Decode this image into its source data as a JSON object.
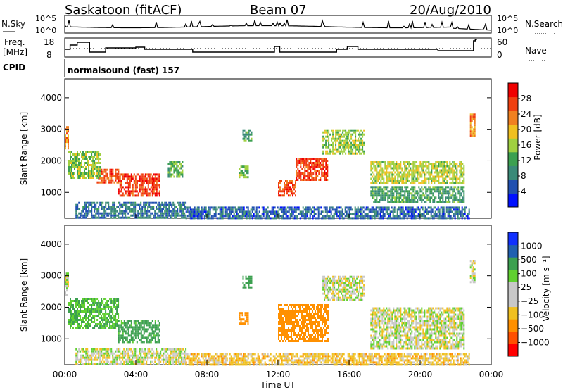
{
  "header": {
    "station": "Saskatoon (fitACF)",
    "beam": "Beam 07",
    "date": "20/Aug/2010"
  },
  "strip_labels": {
    "nsky": "N.Sky",
    "freq_top": "Freq.",
    "freq_unit": "[MHz]",
    "cpid": "CPID",
    "nsearch": "N.Search",
    "nave": "Nave",
    "cpid_text": "normalsound (fast) 157",
    "nsky_ticks": [
      "10^5",
      "10^0"
    ],
    "nsearch_ticks": [
      "10^5",
      "10^0"
    ],
    "freq_ticks": [
      "18",
      "8"
    ],
    "nave_ticks": [
      "60",
      "0"
    ]
  },
  "colors": {
    "power_scale": [
      "#0010ff",
      "#2050b0",
      "#3a8a78",
      "#3ca050",
      "#a0d040",
      "#f0c020",
      "#f08020",
      "#f04010",
      "#f00000"
    ],
    "velocity_scale": [
      "#ff0000",
      "#ff5000",
      "#ff9000",
      "#f0c020",
      "#c8c8c8",
      "#c8c8c8",
      "#60d030",
      "#3ca050",
      "#2060b0",
      "#1030ff"
    ]
  },
  "chart_data": [
    {
      "type": "heatmap",
      "name": "power",
      "ylabel": "Slant Range [km]",
      "ylim": [
        180,
        4600
      ],
      "y_ticks": [
        "1000",
        "2000",
        "3000",
        "4000"
      ],
      "x_ticks": [
        "00:00",
        "04:00",
        "08:00",
        "12:00",
        "16:00",
        "20:00",
        "00:00"
      ],
      "colorbar": {
        "label": "Power [dB]",
        "ticks": [
          "4",
          "8",
          "12",
          "16",
          "20",
          "24",
          "28"
        ]
      },
      "regions": [
        {
          "t0": 1.8,
          "t1": 3.0,
          "r0": 1300,
          "r1": 1750,
          "v": 25
        },
        {
          "t0": 3.0,
          "t1": 5.3,
          "r0": 900,
          "r1": 1600,
          "v": 27
        },
        {
          "t0": 0.2,
          "t1": 2.0,
          "r0": 1450,
          "r1": 2300,
          "v": 14
        },
        {
          "t0": 0.0,
          "t1": 0.2,
          "r0": 2400,
          "r1": 3100,
          "v": 22
        },
        {
          "t0": 0.6,
          "t1": 6.8,
          "r0": 200,
          "r1": 700,
          "v": 6
        },
        {
          "t0": 6.8,
          "t1": 22.8,
          "r0": 200,
          "r1": 550,
          "v": 5
        },
        {
          "t0": 12.0,
          "t1": 13.0,
          "r0": 900,
          "r1": 1400,
          "v": 26
        },
        {
          "t0": 13.0,
          "t1": 14.8,
          "r0": 1400,
          "r1": 2100,
          "v": 27
        },
        {
          "t0": 14.5,
          "t1": 16.8,
          "r0": 2200,
          "r1": 3000,
          "v": 15
        },
        {
          "t0": 17.2,
          "t1": 22.5,
          "r0": 1300,
          "r1": 2000,
          "v": 16
        },
        {
          "t0": 17.2,
          "t1": 22.5,
          "r0": 700,
          "r1": 1200,
          "v": 10
        },
        {
          "t0": 9.8,
          "t1": 10.3,
          "r0": 1450,
          "r1": 1850,
          "v": 13
        },
        {
          "t0": 5.8,
          "t1": 6.6,
          "r0": 1500,
          "r1": 2000,
          "v": 12
        },
        {
          "t0": 10.0,
          "t1": 10.5,
          "r0": 2650,
          "r1": 3000,
          "v": 10
        },
        {
          "t0": 22.8,
          "t1": 23.1,
          "r0": 2800,
          "r1": 3500,
          "v": 22
        }
      ]
    },
    {
      "type": "heatmap",
      "name": "velocity",
      "ylabel": "Slant Range [km]",
      "ylim": [
        180,
        4600
      ],
      "y_ticks": [
        "1000",
        "2000",
        "3000",
        "4000"
      ],
      "x_ticks": [
        "00:00",
        "04:00",
        "08:00",
        "12:00",
        "16:00",
        "20:00",
        "00:00"
      ],
      "xlabel": "Time UT",
      "colorbar": {
        "label": "Velocity [m s⁻¹]",
        "ticks": [
          "1000",
          "500",
          "100",
          "25",
          "−25",
          "−100",
          "−500",
          "−1000"
        ]
      },
      "regions": [
        {
          "t0": 0.2,
          "t1": 3.0,
          "r0": 1300,
          "r1": 2300,
          "v": 100
        },
        {
          "t0": 3.0,
          "t1": 5.3,
          "r0": 900,
          "r1": 1600,
          "v": 150
        },
        {
          "t0": 0.0,
          "t1": 0.2,
          "r0": 2400,
          "r1": 3100,
          "v": 0
        },
        {
          "t0": 0.6,
          "t1": 6.8,
          "r0": 200,
          "r1": 700,
          "v": 0
        },
        {
          "t0": 6.8,
          "t1": 22.8,
          "r0": 200,
          "r1": 550,
          "v": -60
        },
        {
          "t0": 12.0,
          "t1": 14.8,
          "r0": 900,
          "r1": 2100,
          "v": -300
        },
        {
          "t0": 14.5,
          "t1": 16.8,
          "r0": 2200,
          "r1": 3000,
          "v": 0
        },
        {
          "t0": 17.2,
          "t1": 22.5,
          "r0": 700,
          "r1": 2000,
          "v": 0
        },
        {
          "t0": 9.8,
          "t1": 10.3,
          "r0": 1450,
          "r1": 1850,
          "v": -200
        },
        {
          "t0": 10.0,
          "t1": 10.5,
          "r0": 2650,
          "r1": 3000,
          "v": 200
        },
        {
          "t0": 22.8,
          "t1": 23.1,
          "r0": 2800,
          "r1": 3500,
          "v": 0
        }
      ]
    }
  ]
}
